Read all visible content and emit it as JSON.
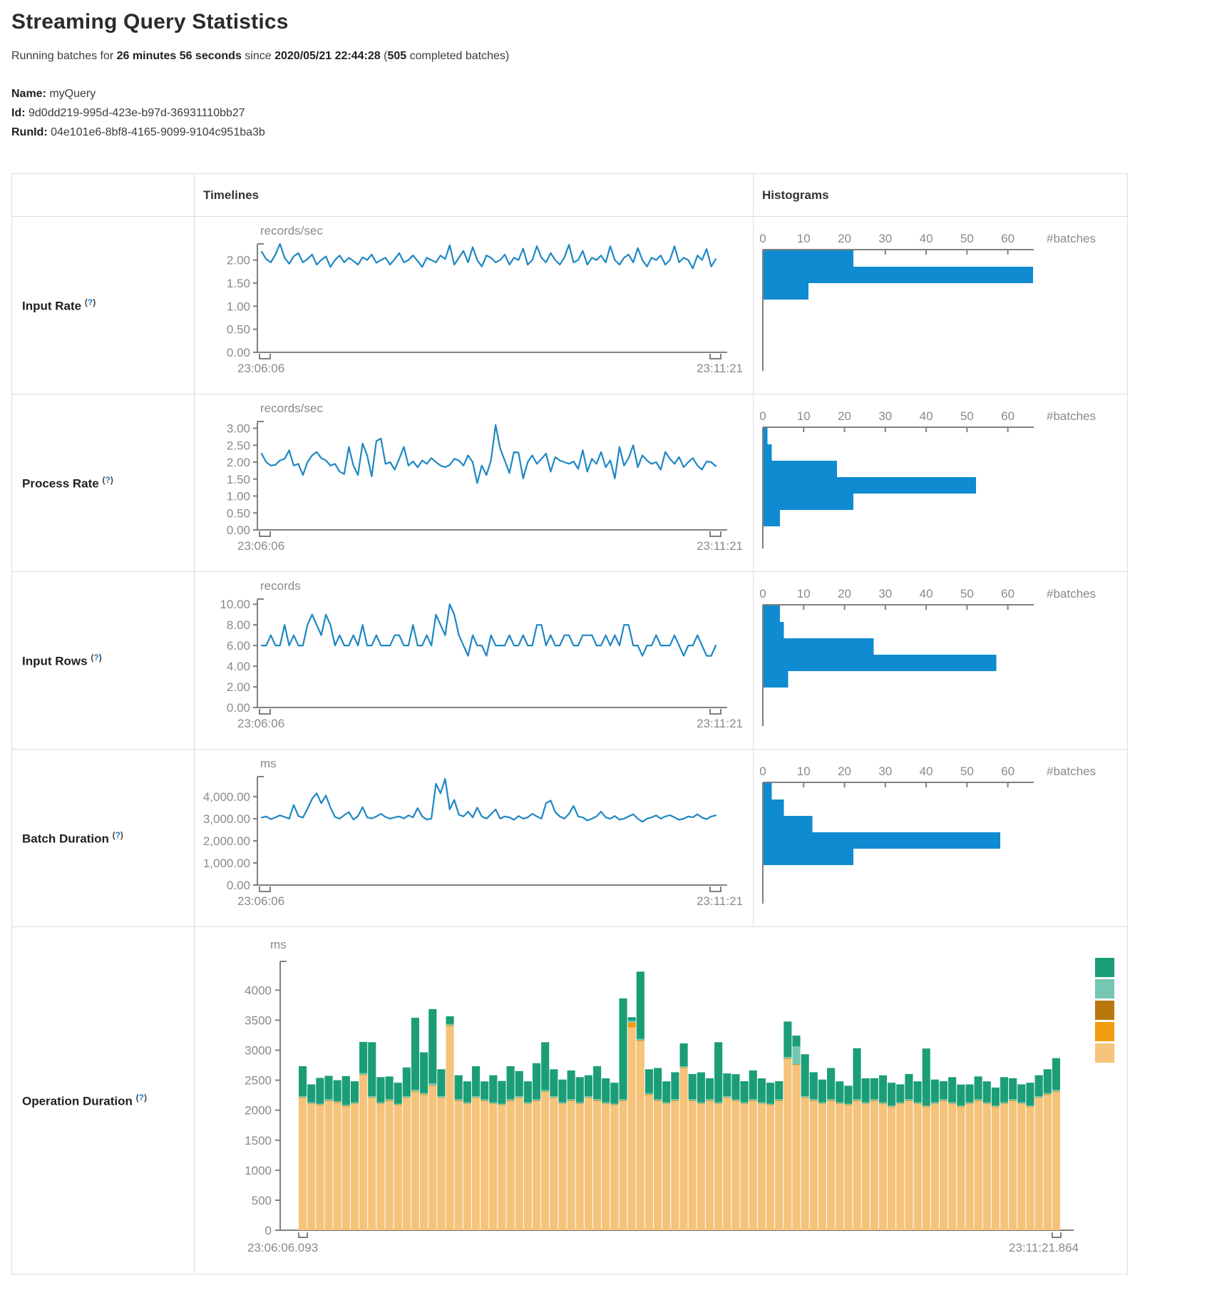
{
  "page": {
    "title": "Streaming Query Statistics",
    "running_line": {
      "part1": "Running batches for ",
      "duration": "26 minutes 56 seconds",
      "part2": " since ",
      "start_time": "2020/05/21 22:44:28",
      "part3": " (",
      "completed_batches": "505",
      "part4": " completed batches)"
    },
    "query": {
      "name_label": "Name:",
      "name": " myQuery",
      "id_label": "Id:",
      "id": " 9d0dd219-995d-423e-b97d-36931110bb27",
      "runid_label": "RunId:",
      "runid": " 04e101e6-8bf8-4165-9099-9104c951ba3b"
    }
  },
  "table": {
    "headers": {
      "timelines": "Timelines",
      "histograms": "Histograms"
    },
    "help": {
      "open": "(",
      "q": "?",
      "close": ")"
    },
    "rows": [
      {
        "label": "Input Rate"
      },
      {
        "label": "Process Rate"
      },
      {
        "label": "Input Rows"
      },
      {
        "label": "Batch Duration"
      },
      {
        "label": "Operation Duration"
      }
    ]
  },
  "colors": {
    "line_blue": "#1d87c4",
    "bar_blue": "#0f8bd1",
    "axis_gray": "#808080",
    "text_gray": "#8a8a8a"
  },
  "chart_data": [
    {
      "id": "input-rate-timeline",
      "type": "line",
      "title": "Input Rate",
      "unit": "records/sec",
      "x_start_label": "23:06:06",
      "x_end_label": "23:11:21",
      "ylim": [
        0,
        2.35
      ],
      "yticks": [
        {
          "v": 2.0,
          "label": "2.00"
        },
        {
          "v": 1.5,
          "label": "1.50"
        },
        {
          "v": 1.0,
          "label": "1.00"
        },
        {
          "v": 0.5,
          "label": "0.50"
        },
        {
          "v": 0,
          "label": "0.00"
        }
      ],
      "values": [
        2.18,
        2.02,
        1.95,
        2.12,
        2.35,
        2.05,
        1.92,
        2.08,
        2.15,
        1.95,
        2.02,
        2.12,
        1.9,
        2.0,
        2.08,
        1.85,
        2.0,
        2.1,
        1.95,
        2.05,
        1.98,
        1.9,
        2.06,
        2.0,
        2.12,
        1.94,
        2.0,
        2.05,
        1.9,
        2.02,
        2.15,
        1.95,
        2.0,
        2.1,
        1.98,
        1.85,
        2.05,
        2.0,
        1.95,
        2.1,
        2.02,
        2.32,
        1.9,
        2.05,
        2.2,
        1.95,
        2.28,
        2.0,
        1.86,
        2.1,
        2.05,
        1.95,
        2.0,
        2.12,
        1.9,
        2.05,
        2.0,
        2.25,
        1.9,
        2.0,
        2.3,
        2.05,
        1.95,
        2.15,
        2.0,
        1.9,
        2.06,
        2.33,
        1.95,
        2.0,
        2.2,
        1.9,
        2.05,
        2.0,
        2.1,
        1.95,
        2.3,
        2.0,
        1.9,
        2.05,
        2.12,
        1.95,
        2.26,
        2.0,
        1.86,
        2.05,
        2.0,
        2.1,
        1.9,
        2.0,
        2.3,
        1.95,
        2.05,
        2.0,
        1.82,
        2.1,
        2.0,
        2.24,
        1.86,
        2.02
      ]
    },
    {
      "id": "input-rate-histogram",
      "type": "hbar",
      "title": "Input Rate histogram",
      "count_label": "#batches",
      "xticks": [
        0,
        10,
        20,
        30,
        40,
        50,
        60
      ],
      "xlim": [
        0,
        66
      ],
      "values": [
        22,
        66,
        11
      ]
    },
    {
      "id": "process-rate-timeline",
      "type": "line",
      "title": "Process Rate",
      "unit": "records/sec",
      "x_start_label": "23:06:06",
      "x_end_label": "23:11:21",
      "ylim": [
        0,
        3.2
      ],
      "yticks": [
        {
          "v": 3.0,
          "label": "3.00"
        },
        {
          "v": 2.5,
          "label": "2.50"
        },
        {
          "v": 2.0,
          "label": "2.00"
        },
        {
          "v": 1.5,
          "label": "1.50"
        },
        {
          "v": 1.0,
          "label": "1.00"
        },
        {
          "v": 0.5,
          "label": "0.50"
        },
        {
          "v": 0,
          "label": "0.00"
        }
      ],
      "values": [
        2.25,
        2.0,
        1.9,
        1.92,
        2.05,
        2.1,
        2.35,
        1.9,
        1.95,
        1.62,
        2.0,
        2.2,
        2.3,
        2.12,
        2.05,
        1.9,
        1.95,
        1.72,
        1.65,
        2.45,
        1.9,
        1.62,
        2.55,
        2.2,
        1.58,
        2.62,
        2.7,
        1.95,
        2.0,
        1.78,
        2.1,
        2.45,
        1.9,
        2.02,
        1.85,
        2.05,
        1.95,
        2.12,
        2.0,
        1.9,
        1.85,
        1.92,
        2.1,
        2.05,
        1.9,
        2.2,
        2.0,
        1.38,
        1.9,
        1.62,
        2.05,
        3.1,
        2.4,
        2.05,
        1.68,
        2.3,
        2.28,
        1.52,
        2.0,
        2.2,
        1.95,
        2.1,
        2.25,
        1.72,
        2.15,
        2.05,
        2.0,
        1.95,
        2.02,
        1.8,
        2.35,
        1.72,
        2.1,
        1.95,
        2.3,
        1.85,
        2.05,
        1.52,
        2.45,
        1.9,
        2.12,
        2.5,
        1.85,
        2.2,
        2.05,
        1.95,
        2.0,
        1.78,
        2.3,
        2.1,
        1.95,
        2.15,
        1.85,
        2.0,
        2.12,
        1.9,
        1.78,
        2.02,
        2.0,
        1.88
      ]
    },
    {
      "id": "process-rate-histogram",
      "type": "hbar",
      "title": "Process Rate histogram",
      "count_label": "#batches",
      "xticks": [
        0,
        10,
        20,
        30,
        40,
        50,
        60
      ],
      "xlim": [
        0,
        66
      ],
      "values": [
        1,
        2,
        18,
        52,
        22,
        4
      ]
    },
    {
      "id": "input-rows-timeline",
      "type": "line",
      "title": "Input Rows",
      "unit": "records",
      "x_start_label": "23:06:06",
      "x_end_label": "23:11:21",
      "ylim": [
        0,
        10.5
      ],
      "yticks": [
        {
          "v": 10,
          "label": "10.00"
        },
        {
          "v": 8,
          "label": "8.00"
        },
        {
          "v": 6,
          "label": "6.00"
        },
        {
          "v": 4,
          "label": "4.00"
        },
        {
          "v": 2,
          "label": "2.00"
        },
        {
          "v": 0,
          "label": "0.00"
        }
      ],
      "values": [
        6,
        6,
        7,
        6,
        6,
        8,
        6,
        7,
        6,
        6,
        8,
        9,
        8,
        7,
        9,
        8,
        6,
        7,
        6,
        6,
        7,
        6,
        8,
        6,
        6,
        7,
        6,
        6,
        6,
        7,
        7,
        6,
        6,
        8,
        6,
        6,
        7,
        6,
        9,
        8,
        7,
        10,
        9,
        7,
        6,
        5,
        7,
        6,
        6,
        5,
        7,
        6,
        6,
        6,
        7,
        6,
        6,
        7,
        6,
        6,
        8,
        8,
        6,
        7,
        6,
        6,
        7,
        7,
        6,
        6,
        7,
        7,
        7,
        6,
        6,
        7,
        6,
        7,
        6,
        8,
        8,
        6,
        6,
        5,
        6,
        6,
        7,
        6,
        6,
        6,
        7,
        6,
        5,
        6,
        6,
        7,
        6,
        5,
        5,
        6
      ]
    },
    {
      "id": "input-rows-histogram",
      "type": "hbar",
      "title": "Input Rows histogram",
      "count_label": "#batches",
      "xticks": [
        0,
        10,
        20,
        30,
        40,
        50,
        60
      ],
      "xlim": [
        0,
        66
      ],
      "values": [
        4,
        5,
        27,
        57,
        6
      ]
    },
    {
      "id": "batch-duration-timeline",
      "type": "line",
      "title": "Batch Duration",
      "unit": "ms",
      "x_start_label": "23:06:06",
      "x_end_label": "23:11:21",
      "ylim": [
        0,
        4900
      ],
      "yticks": [
        {
          "v": 4000,
          "label": "4,000.00"
        },
        {
          "v": 3000,
          "label": "3,000.00"
        },
        {
          "v": 2000,
          "label": "2,000.00"
        },
        {
          "v": 1000,
          "label": "1,000.00"
        },
        {
          "v": 0,
          "label": "0.00"
        }
      ],
      "values": [
        3050,
        3100,
        2980,
        3060,
        3150,
        3080,
        3000,
        3620,
        3120,
        3050,
        3450,
        3900,
        4150,
        3700,
        4050,
        3500,
        3080,
        3000,
        3160,
        3300,
        2960,
        3120,
        3520,
        3060,
        3010,
        3100,
        3220,
        3080,
        3000,
        3060,
        3100,
        3010,
        3150,
        3060,
        3480,
        3100,
        2960,
        3000,
        4580,
        4150,
        4800,
        3420,
        3850,
        3180,
        3100,
        3320,
        3060,
        3500,
        3100,
        3000,
        3200,
        3420,
        3000,
        3100,
        3060,
        2950,
        3120,
        3000,
        3060,
        3220,
        3100,
        3000,
        3700,
        3820,
        3300,
        3100,
        3000,
        3220,
        3580,
        3100,
        3060,
        2920,
        3000,
        3100,
        3320,
        3060,
        3000,
        3120,
        2960,
        3000,
        3100,
        3200,
        3000,
        2860,
        3000,
        3060,
        3150,
        3000,
        3100,
        3160,
        3060,
        2950,
        3000,
        3100,
        3060,
        3200,
        3050,
        2980,
        3100,
        3150
      ]
    },
    {
      "id": "batch-duration-histogram",
      "type": "hbar",
      "title": "Batch Duration histogram",
      "count_label": "#batches",
      "xticks": [
        0,
        10,
        20,
        30,
        40,
        50,
        60
      ],
      "xlim": [
        0,
        66
      ],
      "values": [
        2,
        5,
        12,
        58,
        22
      ]
    },
    {
      "id": "operation-duration-stacked",
      "type": "stacked-bar",
      "title": "Operation Duration",
      "unit": "ms",
      "x_start_label": "23:06:06.093",
      "x_end_label": "23:11:21.864",
      "ylim": [
        0,
        4480
      ],
      "yticks": [
        {
          "v": 4000,
          "label": "4000"
        },
        {
          "v": 3500,
          "label": "3500"
        },
        {
          "v": 3000,
          "label": "3000"
        },
        {
          "v": 2500,
          "label": "2500"
        },
        {
          "v": 2000,
          "label": "2000"
        },
        {
          "v": 1500,
          "label": "1500"
        },
        {
          "v": 1000,
          "label": "1000"
        },
        {
          "v": 500,
          "label": "500"
        },
        {
          "v": 0,
          "label": "0"
        }
      ],
      "series_colors": [
        "#f6c37b",
        "#f29d11",
        "#b8770d",
        "#76c7b1",
        "#1b9e77"
      ],
      "legend_colors": [
        "#1b9e77",
        "#76c7b1",
        "#b8770d",
        "#f29d11",
        "#f6c37b"
      ],
      "bars": [
        [
          2200,
          8,
          5,
          20,
          500
        ],
        [
          2100,
          8,
          5,
          18,
          300
        ],
        [
          2080,
          8,
          5,
          15,
          430
        ],
        [
          2150,
          8,
          5,
          20,
          390
        ],
        [
          2120,
          8,
          5,
          18,
          350
        ],
        [
          2060,
          8,
          5,
          15,
          480
        ],
        [
          2100,
          8,
          5,
          20,
          350
        ],
        [
          2580,
          8,
          5,
          25,
          520
        ],
        [
          2200,
          8,
          5,
          20,
          900
        ],
        [
          2100,
          8,
          5,
          18,
          420
        ],
        [
          2150,
          8,
          5,
          20,
          380
        ],
        [
          2080,
          8,
          5,
          15,
          350
        ],
        [
          2200,
          8,
          5,
          20,
          480
        ],
        [
          2300,
          10,
          5,
          25,
          1200
        ],
        [
          2250,
          10,
          5,
          20,
          680
        ],
        [
          2400,
          10,
          5,
          30,
          1240
        ],
        [
          2200,
          8,
          5,
          20,
          450
        ],
        [
          3400,
          10,
          5,
          20,
          130
        ],
        [
          2150,
          8,
          5,
          20,
          400
        ],
        [
          2100,
          8,
          5,
          18,
          350
        ],
        [
          2200,
          8,
          5,
          20,
          500
        ],
        [
          2150,
          8,
          5,
          18,
          300
        ],
        [
          2100,
          8,
          5,
          20,
          450
        ],
        [
          2080,
          8,
          5,
          15,
          380
        ],
        [
          2150,
          8,
          5,
          20,
          550
        ],
        [
          2200,
          8,
          5,
          20,
          420
        ],
        [
          2100,
          8,
          5,
          18,
          350
        ],
        [
          2150,
          8,
          5,
          20,
          600
        ],
        [
          2300,
          8,
          5,
          20,
          800
        ],
        [
          2200,
          8,
          5,
          20,
          450
        ],
        [
          2100,
          8,
          5,
          18,
          380
        ],
        [
          2150,
          8,
          5,
          20,
          480
        ],
        [
          2100,
          8,
          5,
          18,
          420
        ],
        [
          2200,
          8,
          5,
          20,
          350
        ],
        [
          2150,
          8,
          5,
          20,
          550
        ],
        [
          2100,
          8,
          5,
          18,
          400
        ],
        [
          2080,
          8,
          5,
          15,
          350
        ],
        [
          2150,
          8,
          5,
          20,
          1680
        ],
        [
          3380,
          80,
          5,
          25,
          60
        ],
        [
          3150,
          10,
          5,
          25,
          1120
        ],
        [
          2250,
          8,
          5,
          20,
          400
        ],
        [
          2150,
          8,
          5,
          20,
          520
        ],
        [
          2100,
          8,
          5,
          18,
          350
        ],
        [
          2150,
          8,
          5,
          20,
          450
        ],
        [
          2700,
          8,
          5,
          20,
          380
        ],
        [
          2150,
          8,
          5,
          20,
          420
        ],
        [
          2100,
          8,
          5,
          18,
          500
        ],
        [
          2150,
          8,
          5,
          20,
          350
        ],
        [
          2100,
          8,
          5,
          20,
          1000
        ],
        [
          2200,
          8,
          5,
          20,
          380
        ],
        [
          2150,
          8,
          5,
          18,
          420
        ],
        [
          2100,
          8,
          5,
          20,
          350
        ],
        [
          2150,
          8,
          5,
          20,
          480
        ],
        [
          2100,
          8,
          5,
          18,
          400
        ],
        [
          2080,
          8,
          5,
          15,
          350
        ],
        [
          2150,
          8,
          5,
          20,
          300
        ],
        [
          2850,
          8,
          5,
          25,
          590
        ],
        [
          2750,
          8,
          5,
          300,
          180
        ],
        [
          2200,
          8,
          5,
          20,
          700
        ],
        [
          2150,
          8,
          5,
          20,
          450
        ],
        [
          2100,
          8,
          5,
          18,
          380
        ],
        [
          2150,
          8,
          5,
          20,
          520
        ],
        [
          2100,
          8,
          5,
          18,
          350
        ],
        [
          2080,
          8,
          5,
          15,
          300
        ],
        [
          2150,
          8,
          5,
          20,
          850
        ],
        [
          2100,
          8,
          5,
          18,
          400
        ],
        [
          2150,
          8,
          5,
          20,
          350
        ],
        [
          2100,
          8,
          5,
          18,
          450
        ],
        [
          2050,
          8,
          5,
          15,
          380
        ],
        [
          2100,
          8,
          5,
          18,
          300
        ],
        [
          2150,
          8,
          5,
          20,
          420
        ],
        [
          2100,
          8,
          5,
          18,
          350
        ],
        [
          2050,
          8,
          5,
          15,
          950
        ],
        [
          2100,
          8,
          5,
          18,
          380
        ],
        [
          2150,
          8,
          5,
          20,
          300
        ],
        [
          2100,
          8,
          5,
          18,
          420
        ],
        [
          2050,
          8,
          5,
          15,
          350
        ],
        [
          2100,
          8,
          5,
          18,
          300
        ],
        [
          2150,
          8,
          5,
          20,
          380
        ],
        [
          2100,
          8,
          5,
          18,
          350
        ],
        [
          2050,
          8,
          5,
          15,
          300
        ],
        [
          2100,
          8,
          5,
          18,
          420
        ],
        [
          2150,
          8,
          5,
          20,
          350
        ],
        [
          2100,
          8,
          5,
          18,
          300
        ],
        [
          2050,
          8,
          5,
          15,
          380
        ],
        [
          2200,
          8,
          5,
          20,
          350
        ],
        [
          2250,
          8,
          5,
          20,
          400
        ],
        [
          2300,
          8,
          5,
          25,
          530
        ]
      ]
    }
  ]
}
